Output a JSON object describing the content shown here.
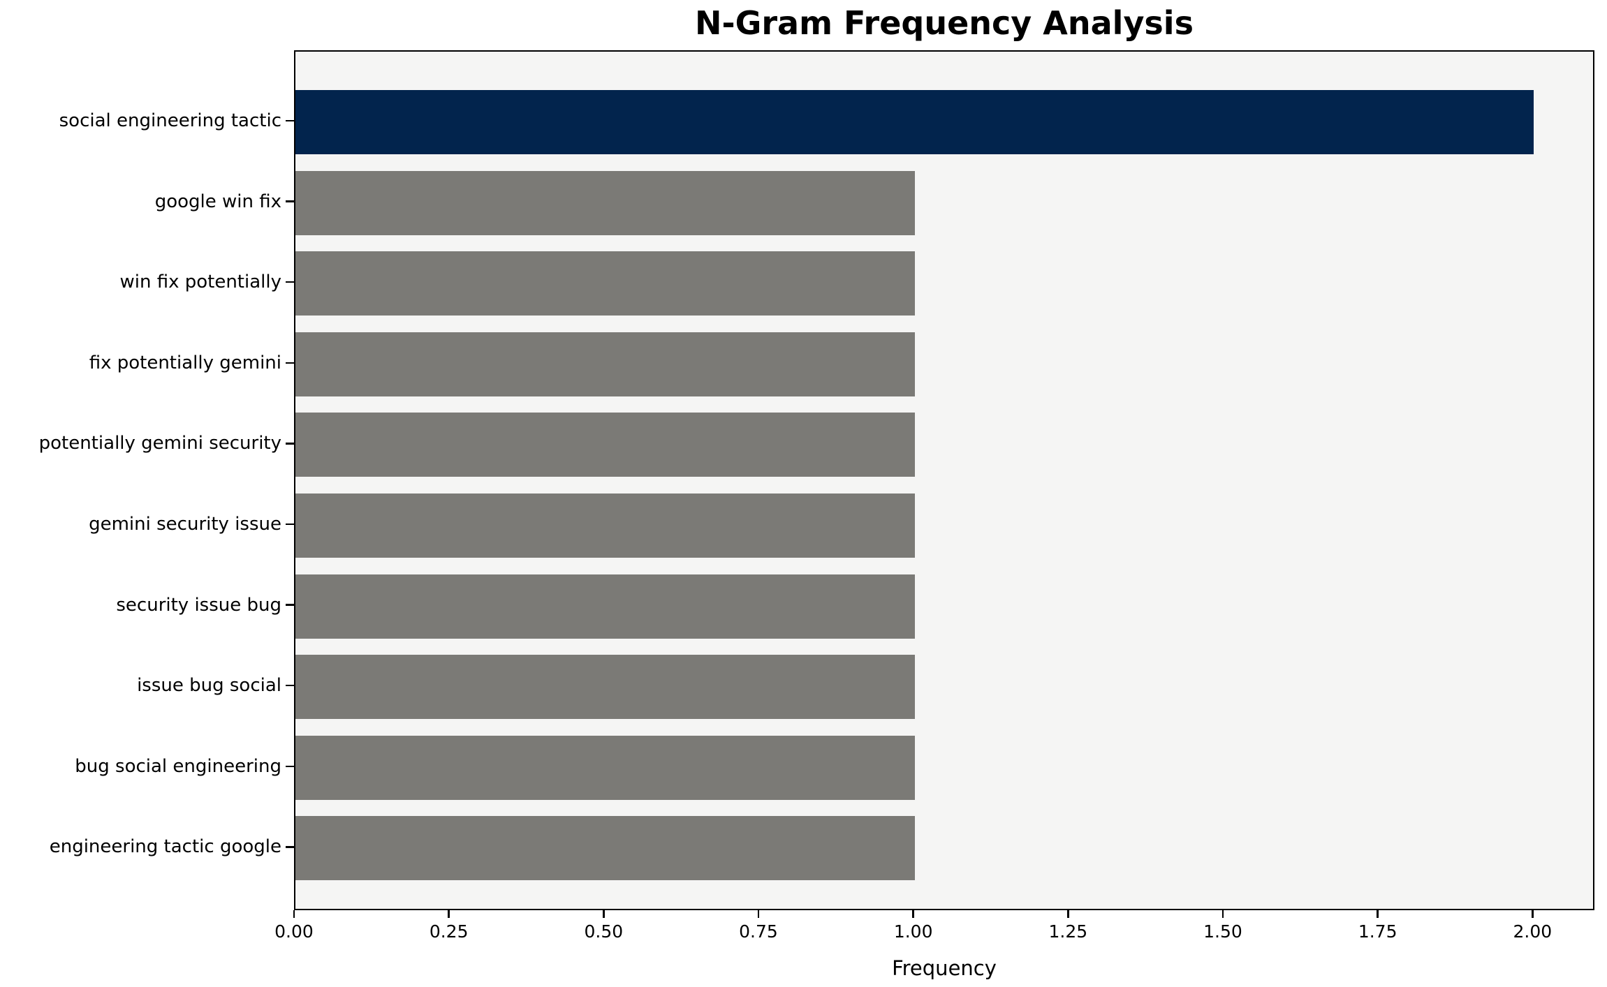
{
  "chart_data": {
    "type": "bar",
    "orientation": "horizontal",
    "title": "N-Gram Frequency Analysis",
    "xlabel": "Frequency",
    "ylabel": "",
    "categories": [
      "social engineering tactic",
      "google win fix",
      "win fix potentially",
      "fix potentially gemini",
      "potentially gemini security",
      "gemini security issue",
      "security issue bug",
      "issue bug social",
      "bug social engineering",
      "engineering tactic google"
    ],
    "values": [
      2.0,
      1.0,
      1.0,
      1.0,
      1.0,
      1.0,
      1.0,
      1.0,
      1.0,
      1.0
    ],
    "bar_colors": [
      "#02244d",
      "#7b7a76",
      "#7b7a76",
      "#7b7a76",
      "#7b7a76",
      "#7b7a76",
      "#7b7a76",
      "#7b7a76",
      "#7b7a76",
      "#7b7a76"
    ],
    "xlim": [
      0,
      2.1
    ],
    "x_ticks": [
      0.0,
      0.25,
      0.5,
      0.75,
      1.0,
      1.25,
      1.5,
      1.75,
      2.0
    ],
    "x_tick_labels": [
      "0.00",
      "0.25",
      "0.50",
      "0.75",
      "1.00",
      "1.25",
      "1.50",
      "1.75",
      "2.00"
    ],
    "grid": false,
    "legend": null,
    "colors": {
      "highlight_bar": "#02244d",
      "default_bar": "#7b7a76",
      "plot_background": "#f5f5f4",
      "figure_background": "#ffffff",
      "spine": "#000000",
      "text": "#000000"
    }
  }
}
